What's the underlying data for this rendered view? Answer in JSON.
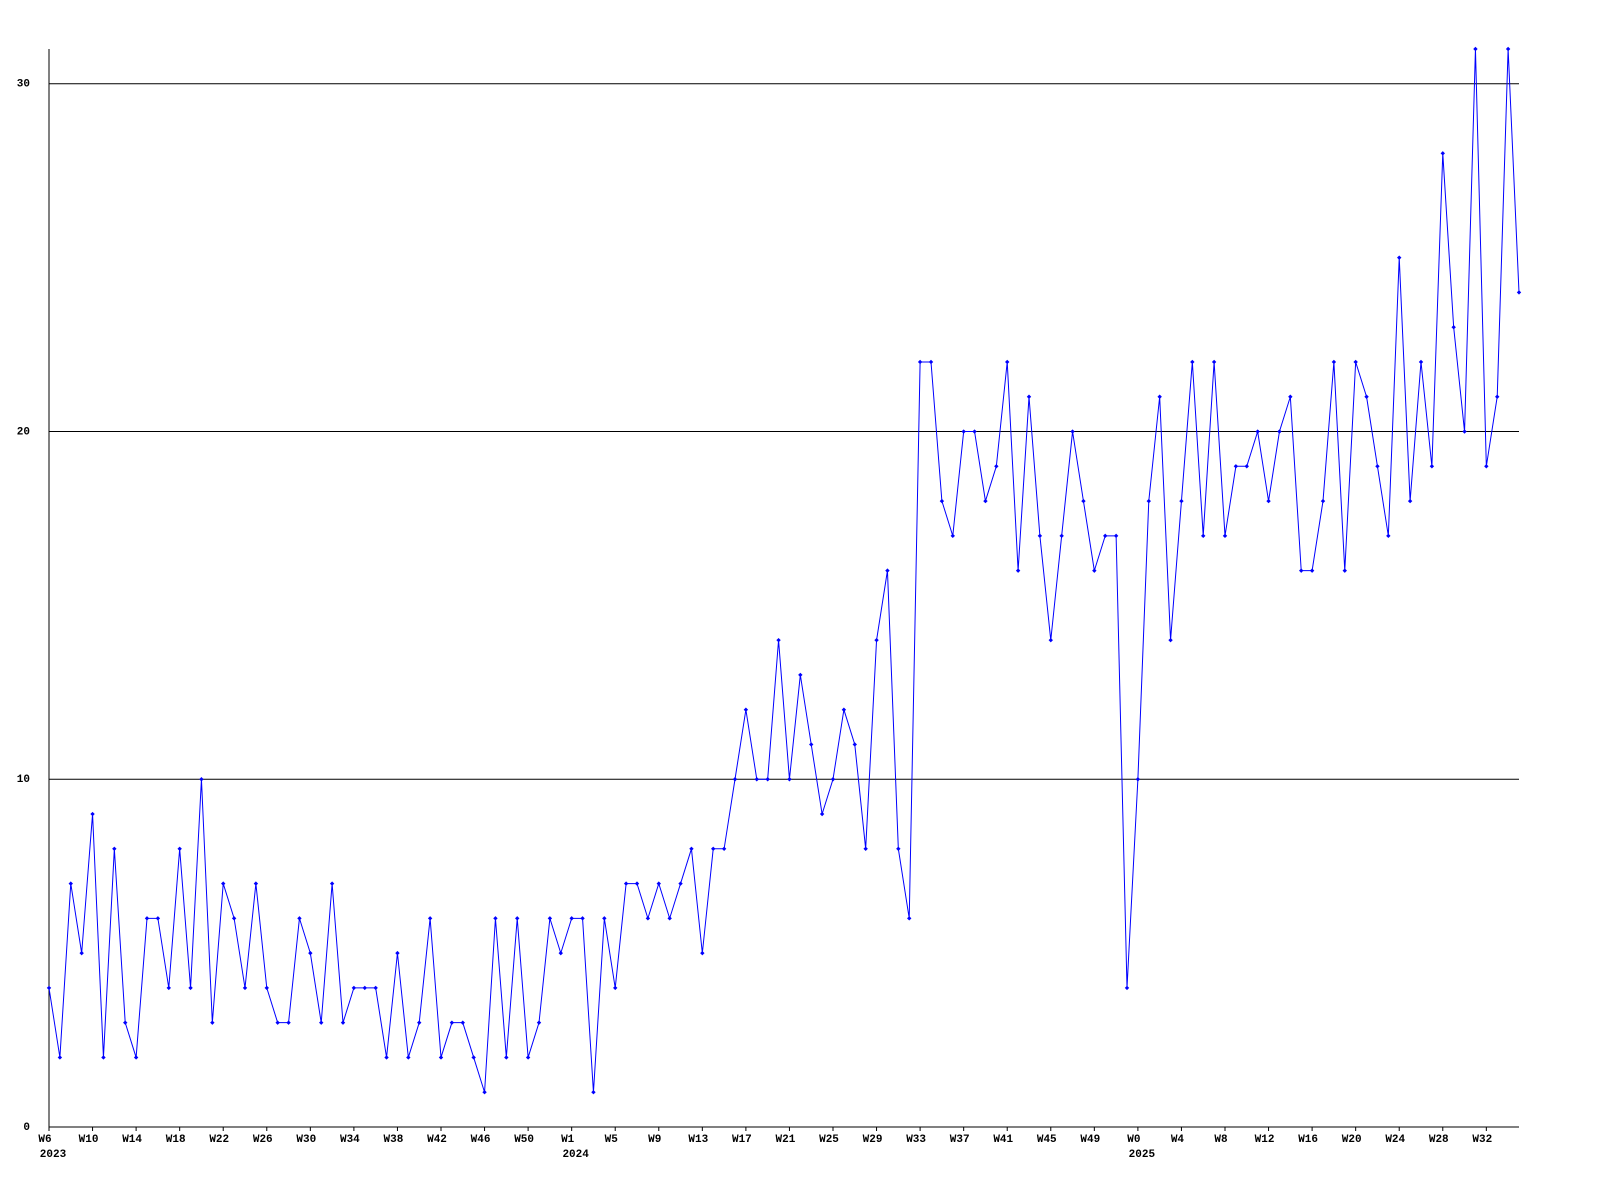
{
  "chart_data": {
    "type": "line",
    "categories": [
      "W6",
      null,
      null,
      null,
      "W10",
      null,
      null,
      null,
      "W14",
      null,
      null,
      null,
      "W18",
      null,
      null,
      null,
      "W22",
      null,
      null,
      null,
      "W26",
      null,
      null,
      null,
      "W30",
      null,
      null,
      null,
      "W34",
      null,
      null,
      null,
      "W38",
      null,
      null,
      null,
      "W42",
      null,
      null,
      null,
      "W46",
      null,
      null,
      null,
      "W50",
      null,
      null,
      null,
      "W1",
      null,
      null,
      null,
      "W5",
      null,
      null,
      null,
      "W9",
      null,
      null,
      null,
      "W13",
      null,
      null,
      null,
      "W17",
      null,
      null,
      null,
      "W21",
      null,
      null,
      null,
      "W25",
      null,
      null,
      null,
      "W29",
      null,
      null,
      null,
      "W33",
      null,
      null,
      null,
      "W37",
      null,
      null,
      null,
      "W41",
      null,
      null,
      null,
      "W45",
      null,
      null,
      null,
      "W49",
      null,
      null,
      null,
      "W0",
      null,
      null,
      null,
      "W4",
      null,
      null,
      null,
      "W8",
      null,
      null,
      null,
      "W12",
      null,
      null,
      null,
      "W16",
      null,
      null,
      null,
      "W20",
      null,
      null,
      null,
      "W24",
      null,
      null,
      null,
      "W28",
      null,
      null,
      null,
      "W32",
      null,
      null,
      null
    ],
    "years": [
      "2023",
      null,
      null,
      null,
      null,
      null,
      null,
      null,
      null,
      null,
      null,
      null,
      null,
      null,
      null,
      null,
      null,
      null,
      null,
      null,
      null,
      null,
      null,
      null,
      null,
      null,
      null,
      null,
      null,
      null,
      null,
      null,
      null,
      null,
      null,
      null,
      null,
      null,
      null,
      null,
      null,
      null,
      null,
      null,
      null,
      null,
      null,
      null,
      "2024",
      null,
      null,
      null,
      null,
      null,
      null,
      null,
      null,
      null,
      null,
      null,
      null,
      null,
      null,
      null,
      null,
      null,
      null,
      null,
      null,
      null,
      null,
      null,
      null,
      null,
      null,
      null,
      null,
      null,
      null,
      null,
      null,
      null,
      null,
      null,
      null,
      null,
      null,
      null,
      null,
      null,
      null,
      null,
      null,
      null,
      null,
      null,
      null,
      null,
      null,
      null,
      "2025",
      null,
      null,
      null,
      null,
      null,
      null,
      null,
      null,
      null,
      null,
      null,
      null,
      null,
      null,
      null,
      null,
      null,
      null,
      null,
      null,
      null,
      null,
      null,
      null,
      null,
      null,
      null,
      null,
      null,
      null,
      null,
      null,
      null,
      null,
      null
    ],
    "values": [
      4,
      2,
      7,
      5,
      9,
      2,
      8,
      3,
      2,
      6,
      6,
      4,
      8,
      4,
      10,
      3,
      7,
      6,
      4,
      7,
      4,
      3,
      3,
      6,
      5,
      3,
      7,
      3,
      4,
      4,
      4,
      2,
      5,
      2,
      3,
      6,
      2,
      3,
      3,
      2,
      1,
      6,
      2,
      6,
      2,
      3,
      6,
      5,
      6,
      6,
      1,
      6,
      4,
      7,
      7,
      6,
      7,
      6,
      7,
      8,
      5,
      8,
      8,
      10,
      12,
      10,
      10,
      14,
      10,
      13,
      11,
      9,
      10,
      12,
      11,
      8,
      14,
      16,
      8,
      6,
      22,
      22,
      18,
      17,
      20,
      20,
      18,
      19,
      22,
      16,
      21,
      17,
      14,
      17,
      20,
      18,
      16,
      17,
      17,
      4,
      10,
      18,
      21,
      14,
      18,
      22,
      17,
      22,
      17,
      19,
      19,
      20,
      18,
      20,
      21,
      16,
      16,
      18,
      22,
      16,
      22,
      21,
      19,
      17,
      25,
      18,
      22,
      19,
      28,
      23,
      20,
      31,
      19,
      21,
      31,
      24
    ],
    "color": "#0000ff",
    "ylim": [
      0,
      31
    ],
    "yticks": [
      0,
      10,
      20,
      30
    ],
    "grid": true
  }
}
